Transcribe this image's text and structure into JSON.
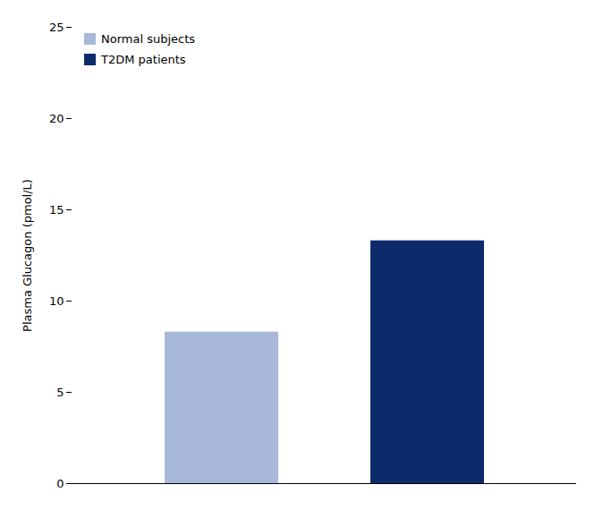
{
  "chart_data": {
    "type": "bar",
    "categories": [
      "Normal subjects",
      "T2DM patients"
    ],
    "values": [
      8.3,
      13.3
    ],
    "colors": [
      "#a8b8d8",
      "#0d2b6b"
    ],
    "ylabel": "Plasma Glucagon (pmol/L)",
    "ylim": [
      0,
      25
    ],
    "yticks": [
      0,
      5,
      10,
      15,
      20,
      25
    ],
    "legend": "top-left",
    "tick_labels": "y"
  }
}
